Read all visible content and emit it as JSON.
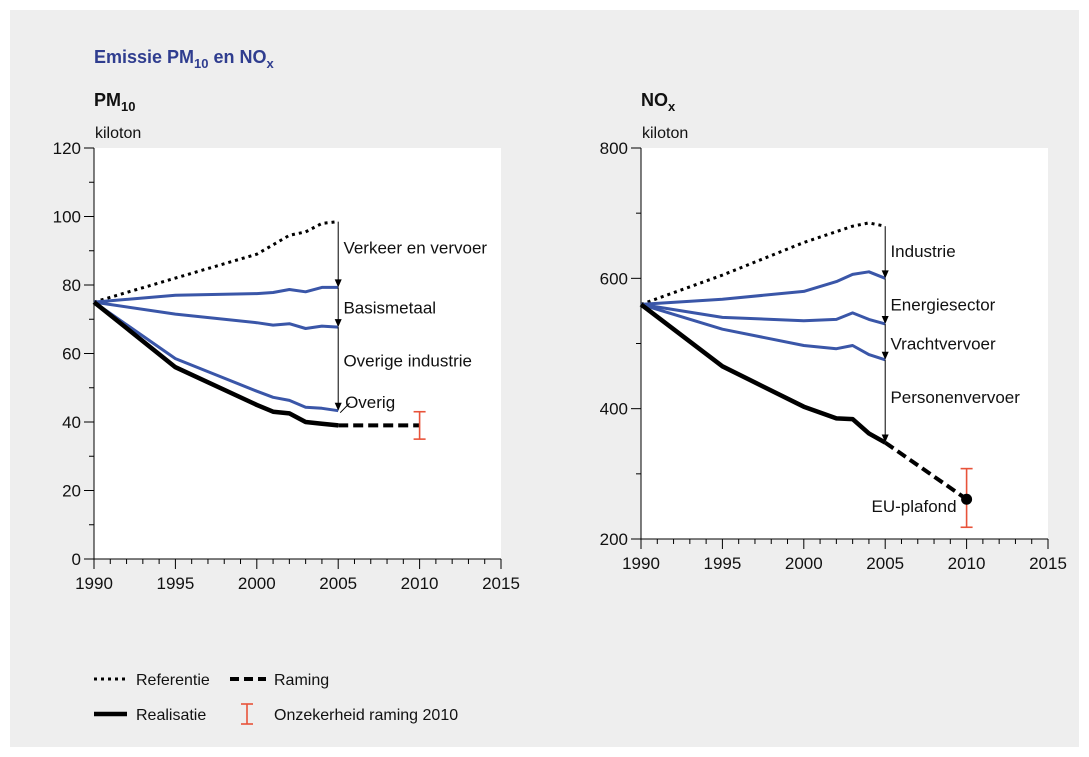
{
  "title": {
    "main": "Emissie PM",
    "sub1": "10",
    "mid": " en NO",
    "sub2": "x"
  },
  "colors": {
    "background": "#eeeeee",
    "plot": "#ffffff",
    "sector": "#3a56a8",
    "uncertainty": "#e8533a",
    "realisatie": "#000000"
  },
  "legend": {
    "referentie": "Referentie",
    "raming": "Raming",
    "realisatie": "Realisatie",
    "onzekerheid": "Onzekerheid raming 2010"
  },
  "chart_data": [
    {
      "type": "line",
      "subtitle": {
        "main": "PM",
        "sub": "10"
      },
      "ylabel": "kiloton",
      "xlim": [
        1990,
        2015
      ],
      "ylim": [
        0,
        120
      ],
      "xticks": [
        "1990",
        "1995",
        "2000",
        "2005",
        "2010",
        "2015"
      ],
      "yticks": [
        "0",
        "20",
        "40",
        "60",
        "80",
        "100",
        "120"
      ],
      "series": [
        {
          "name": "Referentie",
          "style": "ref",
          "points": [
            [
              1990,
              75
            ],
            [
              1995,
              82
            ],
            [
              2000,
              89
            ],
            [
              2002,
              94.5
            ],
            [
              2003,
              95.5
            ],
            [
              2004,
              98
            ],
            [
              2005,
              98.5
            ]
          ]
        },
        {
          "style": "sector",
          "points": [
            [
              1990,
              75
            ],
            [
              1995,
              77
            ],
            [
              2000,
              77.5
            ],
            [
              2001,
              77.8
            ],
            [
              2002,
              78.7
            ],
            [
              2003,
              78
            ],
            [
              2004,
              79.3
            ],
            [
              2005,
              79.3
            ]
          ]
        },
        {
          "style": "sector",
          "points": [
            [
              1990,
              75
            ],
            [
              1995,
              71.5
            ],
            [
              2000,
              69
            ],
            [
              2001,
              68.3
            ],
            [
              2002,
              68.7
            ],
            [
              2003,
              67.3
            ],
            [
              2004,
              68
            ],
            [
              2005,
              67.7
            ]
          ]
        },
        {
          "style": "sector",
          "points": [
            [
              1990,
              75
            ],
            [
              1995,
              58.5
            ],
            [
              2000,
              49
            ],
            [
              2001,
              47.2
            ],
            [
              2002,
              46.3
            ],
            [
              2003,
              44.3
            ],
            [
              2004,
              44
            ],
            [
              2005,
              43.3
            ]
          ]
        },
        {
          "name": "Realisatie",
          "style": "real",
          "points": [
            [
              1990,
              75
            ],
            [
              1995,
              56
            ],
            [
              2000,
              45
            ],
            [
              2001,
              43
            ],
            [
              2002,
              42.5
            ],
            [
              2003,
              40
            ],
            [
              2004,
              39.5
            ],
            [
              2005,
              39
            ]
          ]
        },
        {
          "name": "Raming",
          "style": "raming",
          "points": [
            [
              2005,
              39
            ],
            [
              2010,
              39
            ]
          ]
        }
      ],
      "arrows": [
        {
          "x": 2005,
          "from": 98.5,
          "to": 79.3
        },
        {
          "x": 2005,
          "from": 79.3,
          "to": 67.7
        },
        {
          "x": 2005,
          "from": 67.7,
          "to": 43.3
        }
      ],
      "annotations": [
        {
          "text": "Verkeer en vervoer",
          "x": 2005.2,
          "y": 91
        },
        {
          "text": "Basismetaal",
          "x": 2005.2,
          "y": 73.5
        },
        {
          "text": "Overige industrie",
          "x": 2005.2,
          "y": 58
        },
        {
          "text": "Overig",
          "x": 2005.3,
          "y": 45.8
        }
      ],
      "error_bar": {
        "x": 2010,
        "y": 39,
        "low": 35,
        "high": 43
      }
    },
    {
      "type": "line",
      "subtitle": {
        "main": "NO",
        "sub": "x"
      },
      "ylabel": "kiloton",
      "xlim": [
        1990,
        2015
      ],
      "ylim": [
        200,
        800
      ],
      "xticks": [
        "1990",
        "1995",
        "2000",
        "2005",
        "2010",
        "2015"
      ],
      "yticks": [
        "200",
        "400",
        "600",
        "800"
      ],
      "series": [
        {
          "name": "Referentie",
          "style": "ref",
          "points": [
            [
              1990,
              560
            ],
            [
              1995,
              605
            ],
            [
              2000,
              655
            ],
            [
              2003,
              680
            ],
            [
              2004,
              685
            ],
            [
              2005,
              680
            ]
          ]
        },
        {
          "style": "sector",
          "points": [
            [
              1990,
              560
            ],
            [
              1995,
              568
            ],
            [
              2000,
              580
            ],
            [
              2002,
              595
            ],
            [
              2003,
              606
            ],
            [
              2004,
              610
            ],
            [
              2005,
              600
            ]
          ]
        },
        {
          "style": "sector",
          "points": [
            [
              1990,
              560
            ],
            [
              1995,
              540
            ],
            [
              2000,
              535
            ],
            [
              2002,
              537
            ],
            [
              2003,
              547
            ],
            [
              2004,
              537
            ],
            [
              2005,
              530
            ]
          ]
        },
        {
          "style": "sector",
          "points": [
            [
              1990,
              560
            ],
            [
              1995,
              522
            ],
            [
              2000,
              497
            ],
            [
              2002,
              492
            ],
            [
              2003,
              497
            ],
            [
              2004,
              483
            ],
            [
              2005,
              475
            ]
          ]
        },
        {
          "name": "Realisatie",
          "style": "real",
          "points": [
            [
              1990,
              560
            ],
            [
              1995,
              465
            ],
            [
              2000,
              403
            ],
            [
              2002,
              385
            ],
            [
              2003,
              384
            ],
            [
              2004,
              362
            ],
            [
              2005,
              348
            ]
          ]
        },
        {
          "name": "Raming",
          "style": "raming",
          "points": [
            [
              2005,
              348
            ],
            [
              2010,
              261
            ]
          ]
        }
      ],
      "arrows": [
        {
          "x": 2005,
          "from": 680,
          "to": 600
        },
        {
          "x": 2005,
          "from": 600,
          "to": 530
        },
        {
          "x": 2005,
          "from": 530,
          "to": 475
        },
        {
          "x": 2005,
          "from": 475,
          "to": 348
        }
      ],
      "annotations": [
        {
          "text": "Industrie",
          "x": 2005.2,
          "y": 642
        },
        {
          "text": "Energiesector",
          "x": 2005.2,
          "y": 560
        },
        {
          "text": "Vrachtvervoer",
          "x": 2005.2,
          "y": 500
        },
        {
          "text": "Personenvervoer",
          "x": 2005.2,
          "y": 418
        }
      ],
      "points": [
        {
          "text": "EU-plafond",
          "x": 2010,
          "y": 261
        }
      ],
      "error_bar": {
        "x": 2010,
        "y": 261,
        "low": 218,
        "high": 308
      }
    }
  ]
}
